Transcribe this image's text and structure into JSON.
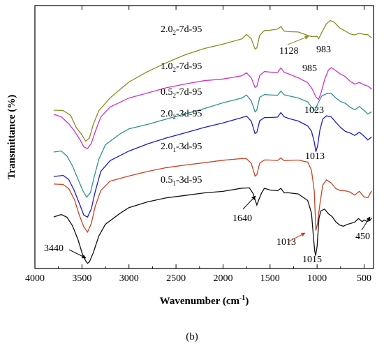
{
  "chart_data": {
    "type": "line",
    "title": "",
    "xlabel": "Wavenumber (cm",
    "xlabel_sup": "-1",
    "xlabel_tail": ")",
    "ylabel": "Transmittance (%)",
    "xlim": [
      4000,
      400
    ],
    "x_reversed": true,
    "grid": false,
    "legend": "none",
    "x_ticks": [
      4000,
      3500,
      3000,
      2500,
      2000,
      1500,
      1000,
      500
    ],
    "x_tick_labels": [
      "4000",
      "3500",
      "3000",
      "2500",
      "2000",
      "1500",
      "1000",
      "500"
    ],
    "caption": "(b)",
    "series": [
      {
        "label_main": "2.0",
        "label_sub": "2",
        "label_rest": "-7d-95",
        "color": "#8b8b1f",
        "points": [
          [
            3800,
            150
          ],
          [
            3700,
            150
          ],
          [
            3620,
            157
          ],
          [
            3560,
            175
          ],
          [
            3500,
            186
          ],
          [
            3460,
            195
          ],
          [
            3420,
            190
          ],
          [
            3380,
            170
          ],
          [
            3320,
            150
          ],
          [
            3200,
            132
          ],
          [
            3000,
            110
          ],
          [
            2800,
            95
          ],
          [
            2600,
            82
          ],
          [
            2400,
            70
          ],
          [
            2200,
            61
          ],
          [
            2000,
            55
          ],
          [
            1800,
            48
          ],
          [
            1750,
            42
          ],
          [
            1700,
            48
          ],
          [
            1660,
            62
          ],
          [
            1640,
            60
          ],
          [
            1610,
            42
          ],
          [
            1560,
            36
          ],
          [
            1500,
            36
          ],
          [
            1420,
            34
          ],
          [
            1385,
            30
          ],
          [
            1350,
            36
          ],
          [
            1300,
            37
          ],
          [
            1200,
            38
          ],
          [
            1128,
            42
          ],
          [
            1060,
            45
          ],
          [
            1000,
            44
          ],
          [
            983,
            47
          ],
          [
            950,
            38
          ],
          [
            900,
            26
          ],
          [
            860,
            22
          ],
          [
            820,
            24
          ],
          [
            760,
            32
          ],
          [
            700,
            36
          ],
          [
            650,
            40
          ],
          [
            600,
            42
          ],
          [
            550,
            40
          ],
          [
            500,
            42
          ],
          [
            460,
            42
          ],
          [
            420,
            46
          ]
        ]
      },
      {
        "label_main": "1.0",
        "label_sub": "2",
        "label_rest": "-7d-95",
        "color": "#cc33cc",
        "points": [
          [
            3800,
            156
          ],
          [
            3720,
            160
          ],
          [
            3640,
            170
          ],
          [
            3580,
            180
          ],
          [
            3520,
            192
          ],
          [
            3480,
            202
          ],
          [
            3440,
            205
          ],
          [
            3400,
            198
          ],
          [
            3360,
            182
          ],
          [
            3300,
            160
          ],
          [
            3200,
            145
          ],
          [
            3000,
            132
          ],
          [
            2800,
            125
          ],
          [
            2600,
            118
          ],
          [
            2400,
            113
          ],
          [
            2200,
            108
          ],
          [
            2000,
            105
          ],
          [
            1800,
            100
          ],
          [
            1750,
            96
          ],
          [
            1700,
            104
          ],
          [
            1660,
            118
          ],
          [
            1640,
            116
          ],
          [
            1610,
            100
          ],
          [
            1560,
            94
          ],
          [
            1500,
            95
          ],
          [
            1420,
            96
          ],
          [
            1385,
            90
          ],
          [
            1350,
            96
          ],
          [
            1300,
            98
          ],
          [
            1200,
            103
          ],
          [
            1100,
            110
          ],
          [
            1050,
            120
          ],
          [
            1010,
            132
          ],
          [
            985,
            135
          ],
          [
            960,
            126
          ],
          [
            920,
            106
          ],
          [
            880,
            92
          ],
          [
            850,
            89
          ],
          [
            820,
            92
          ],
          [
            760,
            98
          ],
          [
            700,
            102
          ],
          [
            650,
            108
          ],
          [
            600,
            112
          ],
          [
            550,
            110
          ],
          [
            500,
            114
          ],
          [
            460,
            116
          ],
          [
            420,
            120
          ]
        ]
      },
      {
        "label_main": "0.5",
        "label_sub": "2",
        "label_rest": "-7d-95",
        "color": "#2f8f9a",
        "points": [
          [
            3800,
            210
          ],
          [
            3720,
            208
          ],
          [
            3660,
            215
          ],
          [
            3600,
            230
          ],
          [
            3540,
            250
          ],
          [
            3490,
            266
          ],
          [
            3450,
            275
          ],
          [
            3410,
            268
          ],
          [
            3370,
            245
          ],
          [
            3320,
            220
          ],
          [
            3250,
            200
          ],
          [
            3100,
            185
          ],
          [
            3000,
            177
          ],
          [
            2800,
            170
          ],
          [
            2600,
            162
          ],
          [
            2400,
            155
          ],
          [
            2200,
            148
          ],
          [
            2000,
            140
          ],
          [
            1800,
            133
          ],
          [
            1750,
            128
          ],
          [
            1700,
            136
          ],
          [
            1660,
            152
          ],
          [
            1640,
            150
          ],
          [
            1610,
            132
          ],
          [
            1560,
            128
          ],
          [
            1500,
            128
          ],
          [
            1420,
            128
          ],
          [
            1385,
            122
          ],
          [
            1350,
            128
          ],
          [
            1300,
            130
          ],
          [
            1200,
            133
          ],
          [
            1100,
            138
          ],
          [
            1060,
            145
          ],
          [
            1023,
            150
          ],
          [
            990,
            140
          ],
          [
            950,
            130
          ],
          [
            900,
            127
          ],
          [
            850,
            126
          ],
          [
            800,
            132
          ],
          [
            750,
            137
          ],
          [
            700,
            140
          ],
          [
            650,
            146
          ],
          [
            600,
            150
          ],
          [
            550,
            145
          ],
          [
            500,
            150
          ],
          [
            460,
            155
          ],
          [
            420,
            152
          ]
        ]
      },
      {
        "label_main": "2.0",
        "label_sub": "2",
        "label_rest": "-3d-95",
        "color": "#1a1acc",
        "points": [
          [
            3800,
            245
          ],
          [
            3700,
            244
          ],
          [
            3640,
            250
          ],
          [
            3580,
            266
          ],
          [
            3520,
            286
          ],
          [
            3480,
            300
          ],
          [
            3440,
            303
          ],
          [
            3400,
            292
          ],
          [
            3360,
            268
          ],
          [
            3300,
            238
          ],
          [
            3200,
            222
          ],
          [
            3000,
            208
          ],
          [
            2800,
            198
          ],
          [
            2600,
            190
          ],
          [
            2400,
            183
          ],
          [
            2200,
            175
          ],
          [
            2000,
            168
          ],
          [
            1800,
            160
          ],
          [
            1750,
            158
          ],
          [
            1700,
            166
          ],
          [
            1660,
            184
          ],
          [
            1640,
            182
          ],
          [
            1610,
            165
          ],
          [
            1560,
            160
          ],
          [
            1500,
            160
          ],
          [
            1420,
            160
          ],
          [
            1385,
            154
          ],
          [
            1350,
            160
          ],
          [
            1300,
            162
          ],
          [
            1200,
            165
          ],
          [
            1100,
            172
          ],
          [
            1060,
            180
          ],
          [
            1030,
            196
          ],
          [
            1013,
            210
          ],
          [
            995,
            202
          ],
          [
            970,
            178
          ],
          [
            940,
            162
          ],
          [
            900,
            158
          ],
          [
            850,
            160
          ],
          [
            800,
            168
          ],
          [
            750,
            175
          ],
          [
            700,
            180
          ],
          [
            650,
            182
          ],
          [
            600,
            186
          ],
          [
            550,
            182
          ],
          [
            500,
            188
          ],
          [
            460,
            193
          ],
          [
            420,
            188
          ]
        ]
      },
      {
        "label_main": "2.0",
        "label_sub": "1",
        "label_rest": "-3d-95",
        "color": "#cc4422",
        "points": [
          [
            3800,
            256
          ],
          [
            3700,
            256
          ],
          [
            3640,
            262
          ],
          [
            3580,
            278
          ],
          [
            3530,
            300
          ],
          [
            3480,
            318
          ],
          [
            3440,
            325
          ],
          [
            3400,
            312
          ],
          [
            3360,
            288
          ],
          [
            3300,
            265
          ],
          [
            3200,
            252
          ],
          [
            3000,
            245
          ],
          [
            2800,
            238
          ],
          [
            2600,
            232
          ],
          [
            2400,
            228
          ],
          [
            2200,
            225
          ],
          [
            2000,
            222
          ],
          [
            1800,
            220
          ],
          [
            1750,
            220
          ],
          [
            1700,
            226
          ],
          [
            1660,
            244
          ],
          [
            1640,
            242
          ],
          [
            1610,
            226
          ],
          [
            1560,
            222
          ],
          [
            1500,
            222
          ],
          [
            1420,
            222
          ],
          [
            1385,
            218
          ],
          [
            1350,
            222
          ],
          [
            1300,
            222
          ],
          [
            1200,
            222
          ],
          [
            1100,
            225
          ],
          [
            1060,
            236
          ],
          [
            1030,
            265
          ],
          [
            1013,
            322
          ],
          [
            995,
            312
          ],
          [
            970,
            285
          ],
          [
            940,
            258
          ],
          [
            900,
            250
          ],
          [
            850,
            254
          ],
          [
            800,
            262
          ],
          [
            750,
            265
          ],
          [
            700,
            266
          ],
          [
            650,
            268
          ],
          [
            600,
            272
          ],
          [
            550,
            266
          ],
          [
            500,
            274
          ],
          [
            460,
            275
          ],
          [
            420,
            266
          ]
        ]
      },
      {
        "label_main": "0.5",
        "label_sub": "1",
        "label_rest": "-3d-95",
        "color": "#111111",
        "points": [
          [
            3800,
            303
          ],
          [
            3720,
            300
          ],
          [
            3660,
            304
          ],
          [
            3600,
            316
          ],
          [
            3540,
            336
          ],
          [
            3490,
            358
          ],
          [
            3460,
            366
          ],
          [
            3440,
            370
          ],
          [
            3420,
            368
          ],
          [
            3380,
            355
          ],
          [
            3320,
            330
          ],
          [
            3250,
            313
          ],
          [
            3100,
            298
          ],
          [
            3000,
            290
          ],
          [
            2800,
            282
          ],
          [
            2600,
            276
          ],
          [
            2400,
            272
          ],
          [
            2200,
            268
          ],
          [
            2000,
            266
          ],
          [
            1800,
            262
          ],
          [
            1720,
            262
          ],
          [
            1680,
            270
          ],
          [
            1640,
            286
          ],
          [
            1620,
            278
          ],
          [
            1590,
            268
          ],
          [
            1560,
            262
          ],
          [
            1500,
            265
          ],
          [
            1420,
            266
          ],
          [
            1385,
            262
          ],
          [
            1350,
            268
          ],
          [
            1300,
            268
          ],
          [
            1200,
            270
          ],
          [
            1100,
            280
          ],
          [
            1060,
            298
          ],
          [
            1040,
            330
          ],
          [
            1025,
            352
          ],
          [
            1015,
            358
          ],
          [
            1000,
            345
          ],
          [
            980,
            305
          ],
          [
            960,
            295
          ],
          [
            920,
            292
          ],
          [
            880,
            298
          ],
          [
            840,
            302
          ],
          [
            800,
            310
          ],
          [
            760,
            315
          ],
          [
            720,
            317
          ],
          [
            680,
            314
          ],
          [
            640,
            312
          ],
          [
            600,
            310
          ],
          [
            560,
            305
          ],
          [
            520,
            310
          ],
          [
            500,
            308
          ],
          [
            470,
            310
          ],
          [
            440,
            308
          ],
          [
            420,
            304
          ]
        ]
      }
    ],
    "annotations": [
      {
        "text": "1128",
        "color": "#8b8b1f"
      },
      {
        "text": "983",
        "color": "#8b8b1f"
      },
      {
        "text": "985",
        "color": "#cc33cc"
      },
      {
        "text": "1023",
        "color": "#2f8f9a"
      },
      {
        "text": "1013",
        "color": "#1a1acc"
      },
      {
        "text": "1640",
        "color": "#111111"
      },
      {
        "text": "1013",
        "color": "#cc4422"
      },
      {
        "text": "1015",
        "color": "#111111"
      },
      {
        "text": "3440",
        "color": "#111111"
      },
      {
        "text": "450",
        "color": "#111111"
      }
    ]
  }
}
